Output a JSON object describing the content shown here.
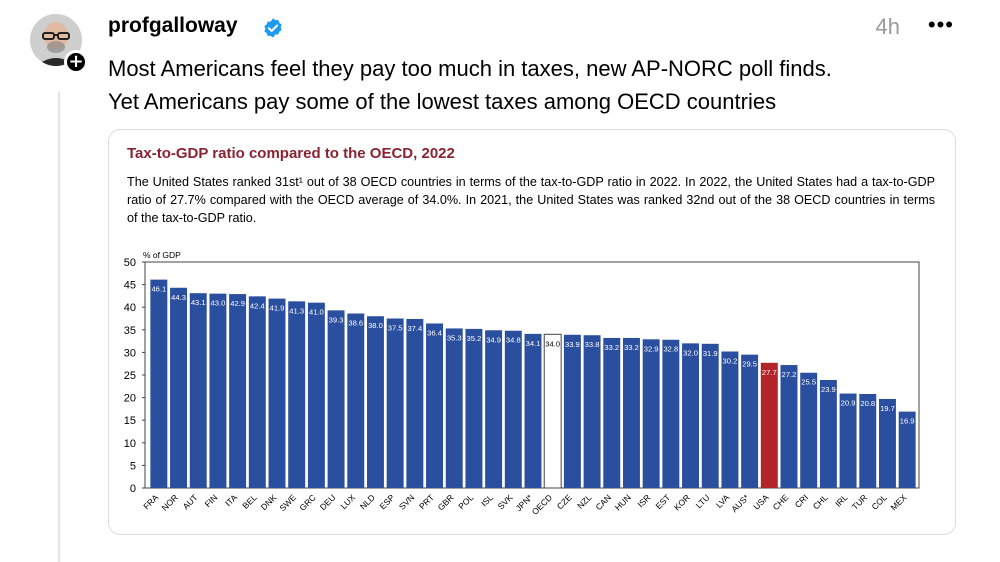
{
  "post": {
    "username": "profgalloway",
    "timestamp": "4h",
    "text_line1": "Most Americans feel they pay too much in taxes, new AP-NORC poll finds.",
    "text_line2": "Yet Americans pay some of the lowest taxes among OECD countries",
    "icons": {
      "verified": "verified-badge-icon",
      "follow": "plus-icon",
      "more": "more-options-icon"
    },
    "more_glyph": "•••"
  },
  "colors": {
    "bar": "#2a4f9e",
    "usa": "#b3242a",
    "oecd": "#ffffff",
    "title": "#8b2231",
    "verified": "#1d9bf0"
  },
  "chart_data": {
    "type": "bar",
    "title": "Tax-to-GDP ratio compared to the OECD, 2022",
    "description": "The United States ranked 31st¹ out of 38 OECD countries in terms of the tax-to-GDP ratio in 2022. In 2022, the United States had a tax-to-GDP ratio of 27.7% compared with the OECD average of 34.0%. In 2021, the United States was ranked 32nd out of the 38 OECD countries in terms of the tax-to-GDP ratio.",
    "ylabel": "% of GDP",
    "ylim": [
      0,
      50
    ],
    "yticks": [
      0,
      5,
      10,
      15,
      20,
      25,
      30,
      35,
      40,
      45,
      50
    ],
    "categories": [
      "FRA",
      "NOR",
      "AUT",
      "FIN",
      "ITA",
      "BEL",
      "DNK",
      "SWE",
      "GRC",
      "DEU",
      "LUX",
      "NLD",
      "ESP",
      "SVN",
      "PRT",
      "GBR",
      "POL",
      "ISL",
      "SVK",
      "JPN*",
      "OECD",
      "CZE",
      "NZL",
      "CAN",
      "HUN",
      "ISR",
      "EST",
      "KOR",
      "LTU",
      "LVA",
      "AUS*",
      "USA",
      "CHE",
      "CRI",
      "CHL",
      "IRL",
      "TUR",
      "COL",
      "MEX"
    ],
    "values": [
      46.1,
      44.3,
      43.1,
      43.0,
      42.9,
      42.4,
      41.9,
      41.3,
      41.0,
      39.3,
      38.6,
      38.0,
      37.5,
      37.4,
      36.4,
      35.3,
      35.2,
      34.9,
      34.8,
      34.1,
      34.0,
      33.9,
      33.8,
      33.2,
      33.2,
      32.9,
      32.8,
      32.0,
      31.9,
      30.2,
      29.5,
      27.7,
      27.2,
      25.5,
      23.9,
      20.9,
      20.8,
      19.7,
      16.9
    ],
    "data_labels": [
      "46.1",
      "44.3",
      "43.1",
      "43.0",
      "42.9",
      "42.4",
      "41.9",
      "41.3",
      "41.0",
      "39.3",
      "38.6",
      "38.0",
      "37.5",
      "37.4",
      "36.4",
      "35.3",
      "35.2",
      "34.9",
      "34.8",
      "34.1",
      "34.0",
      "33.9",
      "33.8",
      "33.2",
      "33.2",
      "32.9",
      "32.8",
      "32.0",
      "31.9",
      "30.2",
      "29.5",
      "27.7",
      "27.2",
      "25.5",
      "23.9",
      "20.9",
      "20.8",
      "19.7",
      "16.9"
    ],
    "highlight": {
      "USA": "usa",
      "OECD": "oecd"
    },
    "grid": false,
    "legend": "none"
  }
}
